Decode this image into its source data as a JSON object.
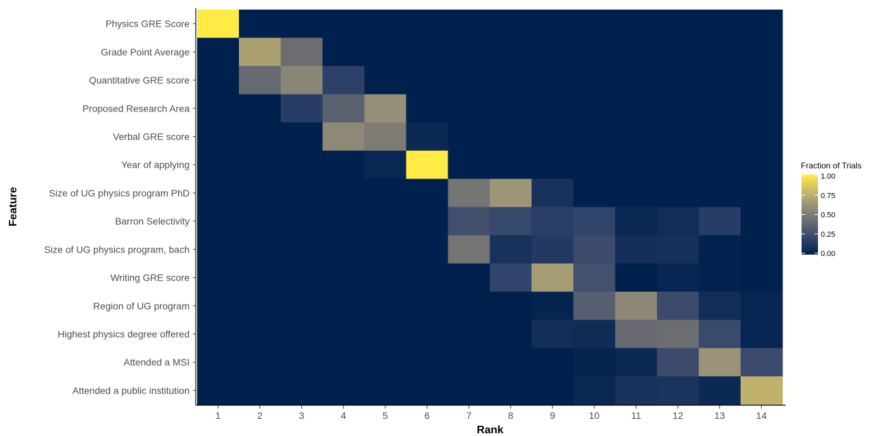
{
  "chart_data": {
    "type": "heatmap",
    "title": "",
    "xlabel": "Rank",
    "ylabel": "Feature",
    "x_categories": [
      "1",
      "2",
      "3",
      "4",
      "5",
      "6",
      "7",
      "8",
      "9",
      "10",
      "11",
      "12",
      "13",
      "14"
    ],
    "y_categories": [
      "Physics GRE Score",
      "Grade Point Average",
      "Quantitative GRE score",
      "Proposed Research Area",
      "Verbal GRE score",
      "Year of applying",
      "Size of UG physics program PhD",
      "Barron Selectivity",
      "Size of UG physics program, bach",
      "Writing GRE score",
      "Region of UG program",
      "Highest physics degree offered",
      "Attended a MSI",
      "Attended a public institution"
    ],
    "values": [
      [
        1.0,
        0,
        0,
        0,
        0,
        0,
        0,
        0,
        0,
        0,
        0,
        0,
        0,
        0
      ],
      [
        0,
        0.68,
        0.42,
        0,
        0,
        0,
        0,
        0,
        0,
        0,
        0,
        0,
        0,
        0
      ],
      [
        0,
        0.4,
        0.55,
        0.18,
        0,
        0,
        0,
        0,
        0,
        0,
        0,
        0,
        0,
        0
      ],
      [
        0,
        0,
        0.16,
        0.36,
        0.6,
        0,
        0,
        0,
        0,
        0,
        0,
        0,
        0,
        0
      ],
      [
        0,
        0,
        0,
        0.57,
        0.5,
        0.05,
        0,
        0,
        0,
        0,
        0,
        0,
        0,
        0
      ],
      [
        0,
        0,
        0,
        0,
        0.04,
        1.0,
        0,
        0,
        0,
        0,
        0,
        0,
        0,
        0
      ],
      [
        0,
        0,
        0,
        0,
        0,
        0,
        0.46,
        0.63,
        0.1,
        0,
        0,
        0,
        0,
        0
      ],
      [
        0,
        0,
        0,
        0,
        0,
        0,
        0.26,
        0.22,
        0.17,
        0.2,
        0.04,
        0.07,
        0.16,
        0
      ],
      [
        0,
        0,
        0,
        0,
        0,
        0,
        0.46,
        0.1,
        0.14,
        0.24,
        0.08,
        0.09,
        0.01,
        0
      ],
      [
        0,
        0,
        0,
        0,
        0,
        0,
        0,
        0.2,
        0.66,
        0.27,
        0,
        0.03,
        0.01,
        0
      ],
      [
        0,
        0,
        0,
        0,
        0,
        0,
        0,
        0,
        0.02,
        0.34,
        0.56,
        0.24,
        0.07,
        0.03
      ],
      [
        0,
        0,
        0,
        0,
        0,
        0,
        0,
        0,
        0.07,
        0.06,
        0.4,
        0.42,
        0.23,
        0.03
      ],
      [
        0,
        0,
        0,
        0,
        0,
        0,
        0,
        0,
        0,
        0.02,
        0.05,
        0.24,
        0.62,
        0.24
      ],
      [
        0,
        0,
        0,
        0,
        0,
        0,
        0,
        0,
        0,
        0.04,
        0.1,
        0.11,
        0.05,
        0.76
      ]
    ],
    "legend": {
      "title": "Fraction of Trials",
      "ticks": [
        "0.00",
        "0.25",
        "0.50",
        "0.75",
        "1.00"
      ],
      "tick_values": [
        0,
        0.25,
        0.5,
        0.75,
        1.0
      ],
      "range": [
        0,
        1
      ],
      "placement": "right"
    },
    "colormap": [
      "#00204D",
      "#31446B",
      "#666970",
      "#958F78",
      "#CBBA69",
      "#FFEA46"
    ],
    "grid": false
  }
}
